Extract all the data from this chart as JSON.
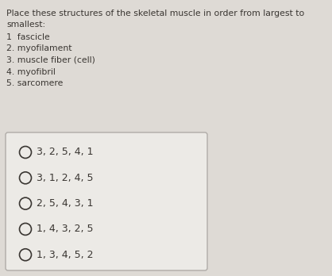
{
  "bg_color": "#dedad5",
  "box_bg": "#eceae6",
  "question_lines": [
    "Place these structures of the skeletal muscle in order from largest to",
    "smallest:"
  ],
  "numbered_items": [
    "1  fascicle",
    "2. myofilament",
    "3. muscle fiber (cell)",
    "4. myofibril",
    "5. sarcomere"
  ],
  "options": [
    "3, 2, 5, 4, 1",
    "3, 1, 2, 4, 5",
    "2, 5, 4, 3, 1",
    "1, 4, 3, 2, 5",
    "1, 3, 4, 5, 2"
  ],
  "text_color": "#3a3632",
  "question_fontsize": 7.8,
  "item_fontsize": 7.8,
  "option_fontsize": 9.0,
  "box_edge_color": "#b0aca8",
  "fig_width": 4.18,
  "fig_height": 3.48,
  "dpi": 100
}
